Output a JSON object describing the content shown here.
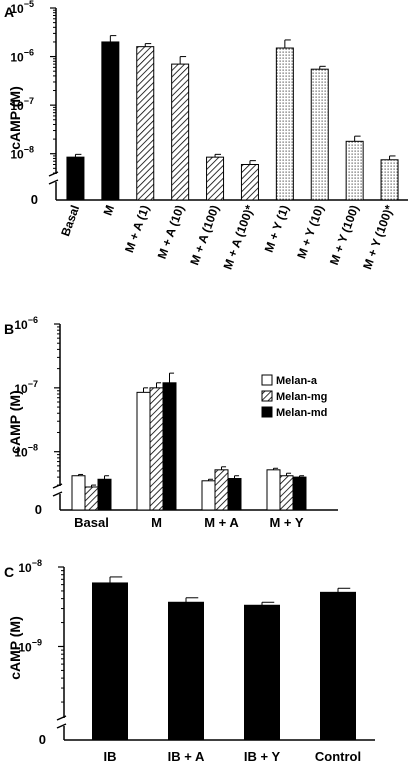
{
  "panels": [
    {
      "label": "A",
      "chart_data": {
        "type": "bar",
        "scale": "log",
        "ylabel": "cAMP (M)",
        "yticks": [
          {
            "exp": -8,
            "label": "10",
            "sup": "−8"
          },
          {
            "exp": -7,
            "label": "10",
            "sup": "−7"
          },
          {
            "exp": -6,
            "label": "10",
            "sup": "−6"
          },
          {
            "exp": -5,
            "label": "10",
            "sup": "−5"
          }
        ],
        "zero_label": "0",
        "ylim_exp": [
          -8.5,
          -5
        ],
        "categories": [
          "Basal",
          "M",
          "M + A (1)",
          "M + A (10)",
          "M + A (100)",
          "M + A (100)*",
          "M + Y (1)",
          "M + Y (10)",
          "M + Y (100)",
          "M + Y (100)*"
        ],
        "values": [
          8.5e-09,
          2e-06,
          1.6e-06,
          7e-07,
          8.5e-09,
          6e-09,
          1.5e-06,
          5.5e-07,
          1.8e-08,
          7.5e-09
        ],
        "errors": [
          1.2e-09,
          7e-07,
          2.5e-07,
          3e-07,
          1.2e-09,
          1.2e-09,
          7e-07,
          8e-08,
          5e-09,
          1.5e-09
        ],
        "fills": [
          "black",
          "black",
          "hatch",
          "hatch",
          "hatch",
          "hatch",
          "dots",
          "dots",
          "dots",
          "dots"
        ]
      }
    },
    {
      "label": "B",
      "chart_data": {
        "type": "bar",
        "scale": "log",
        "ylabel": "cAMP (M)",
        "yticks": [
          {
            "exp": -8,
            "label": "10",
            "sup": "−8"
          },
          {
            "exp": -7,
            "label": "10",
            "sup": "−7"
          },
          {
            "exp": -6,
            "label": "10",
            "sup": "−6"
          }
        ],
        "zero_label": "0",
        "ylim_exp": [
          -8.6,
          -6
        ],
        "categories": [
          "Basal",
          "M",
          "M + A",
          "M + Y"
        ],
        "series": [
          {
            "name": "Melan-a",
            "fill": "white",
            "values": [
              4.2e-09,
              8.5e-08,
              3.5e-09,
              5.2e-09
            ],
            "errors": [
              2e-10,
              1.5e-08,
              2e-10,
              3e-10
            ]
          },
          {
            "name": "Melan-mg",
            "fill": "hatch",
            "values": [
              2.8e-09,
              1e-07,
              5.2e-09,
              4.2e-09
            ],
            "errors": [
              2e-10,
              2e-08,
              6e-10,
              4e-10
            ]
          },
          {
            "name": "Melan-md",
            "fill": "black",
            "values": [
              3.7e-09,
              1.2e-07,
              3.8e-09,
              4e-09
            ],
            "errors": [
              5e-10,
              5e-08,
              4e-10,
              2e-10
            ]
          }
        ],
        "legend_position": "right"
      }
    },
    {
      "label": "C",
      "chart_data": {
        "type": "bar",
        "scale": "log",
        "ylabel": "cAMP (M)",
        "yticks": [
          {
            "exp": -9,
            "label": "10",
            "sup": "−9"
          },
          {
            "exp": -8,
            "label": "10",
            "sup": "−8"
          }
        ],
        "zero_label": "0",
        "ylim_exp": [
          -9.95,
          -8
        ],
        "categories": [
          "IB",
          "IB + A",
          "IB + Y",
          "Control"
        ],
        "values": [
          6.3e-09,
          3.6e-09,
          3.3e-09,
          4.8e-09
        ],
        "errors": [
          1.2e-09,
          5e-10,
          3e-10,
          6e-10
        ],
        "fills": [
          "black",
          "black",
          "black",
          "black"
        ]
      }
    }
  ]
}
